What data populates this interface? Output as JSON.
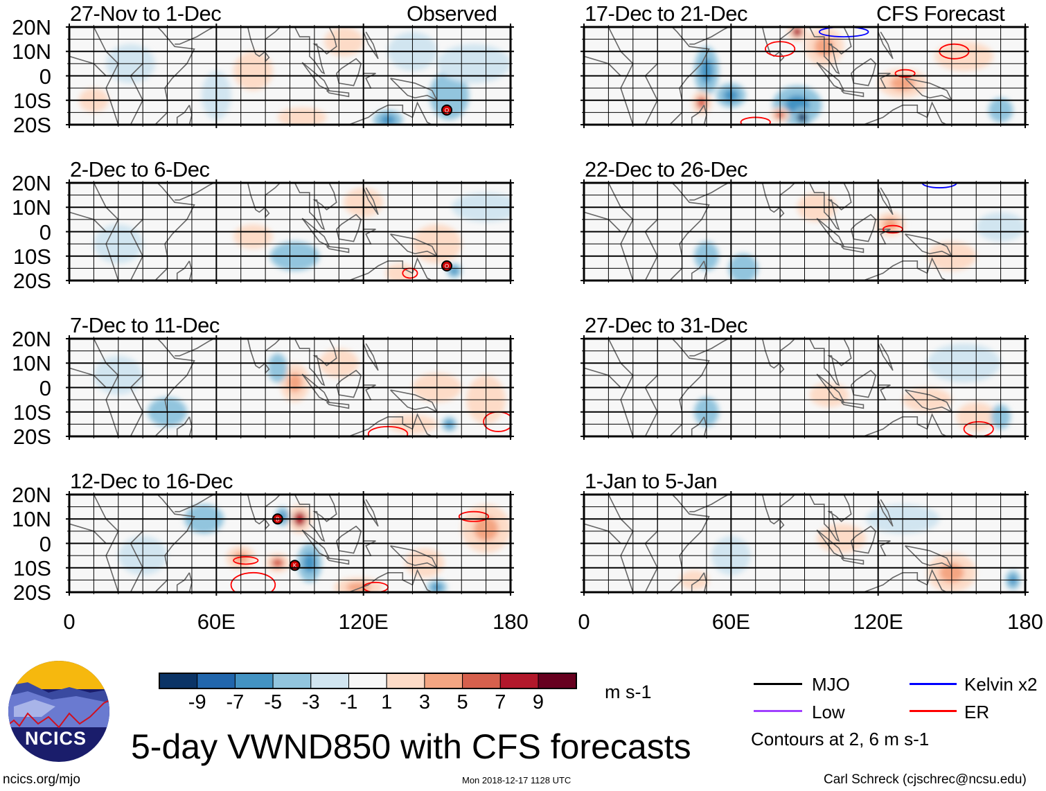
{
  "figure_title": "5-day VWND850 with CFS forecasts",
  "observed_label": "Observed",
  "forecast_label": "CFS Forecast",
  "lat_labels": [
    "20N",
    "10N",
    "0",
    "10S",
    "20S"
  ],
  "lon_labels": [
    "0",
    "60E",
    "120E",
    "180"
  ],
  "colorbar": {
    "units": "m s-1",
    "labels": [
      "-9",
      "-7",
      "-5",
      "-3",
      "-1",
      "1",
      "3",
      "5",
      "7",
      "9"
    ],
    "colors": [
      "#0b3466",
      "#2166ac",
      "#4393c3",
      "#92c5de",
      "#d1e5f0",
      "#f7f7f7",
      "#fddbc7",
      "#f4a582",
      "#d6604d",
      "#b2182b",
      "#67001f"
    ]
  },
  "legend": {
    "items": [
      {
        "label": "MJO",
        "color": "#000000"
      },
      {
        "label": "Kelvin x2",
        "color": "#0000ff"
      },
      {
        "label": "Low",
        "color": "#a040ff"
      },
      {
        "label": "ER",
        "color": "#ff0000"
      }
    ],
    "note": "Contours at 2, 6 m s-1"
  },
  "footer": {
    "left": "ncics.org/mjo",
    "center": "Mon 2018-12-17 1128 UTC",
    "right": "Carl Schreck (cjschrec@ncsu.edu)"
  },
  "logo_text": "NCICS",
  "panels": [
    {
      "title": "27-Nov to 1-Dec",
      "col": 0,
      "row": 0,
      "anoms": [
        [
          10,
          -10,
          6,
          5,
          3
        ],
        [
          75,
          2,
          8,
          8,
          2
        ],
        [
          112,
          14,
          8,
          6,
          3
        ],
        [
          95,
          -17,
          10,
          4,
          3
        ],
        [
          60,
          -8,
          6,
          10,
          -2
        ],
        [
          130,
          -18,
          6,
          4,
          -5
        ],
        [
          155,
          -8,
          8,
          10,
          -3
        ],
        [
          165,
          5,
          15,
          8,
          -2
        ],
        [
          25,
          5,
          10,
          8,
          -2
        ],
        [
          140,
          10,
          10,
          8,
          -1
        ]
      ],
      "contours": [],
      "storms": [
        [
          154,
          -14,
          "Q"
        ]
      ]
    },
    {
      "title": "17-Dec to 21-Dec",
      "col": 1,
      "row": 0,
      "anoms": [
        [
          50,
          2,
          5,
          10,
          -5
        ],
        [
          60,
          -8,
          6,
          5,
          -5
        ],
        [
          48,
          -11,
          4,
          5,
          6
        ],
        [
          87,
          -12,
          10,
          8,
          -5
        ],
        [
          89,
          -17,
          4,
          4,
          -9
        ],
        [
          80,
          -16,
          4,
          3,
          7
        ],
        [
          87,
          18,
          4,
          4,
          9
        ],
        [
          98,
          12,
          8,
          8,
          5
        ],
        [
          130,
          -3,
          10,
          6,
          4
        ],
        [
          155,
          8,
          12,
          6,
          3
        ],
        [
          170,
          -14,
          5,
          5,
          -4
        ]
      ],
      "contours": [
        [
          80,
          11,
          6,
          3,
          "ER"
        ],
        [
          151,
          10,
          6,
          3,
          "ER"
        ],
        [
          131,
          1,
          4,
          1.5,
          "ER"
        ],
        [
          70,
          -19,
          6,
          2,
          "ER"
        ],
        [
          106,
          18,
          10,
          2,
          "Kelvin"
        ]
      ],
      "storms": []
    },
    {
      "title": "2-Dec to 6-Dec",
      "col": 0,
      "row": 1,
      "anoms": [
        [
          120,
          12,
          8,
          6,
          3
        ],
        [
          92,
          -10,
          10,
          6,
          -3
        ],
        [
          150,
          -5,
          10,
          8,
          3
        ],
        [
          157,
          -16,
          3,
          3,
          -6
        ],
        [
          170,
          10,
          14,
          6,
          -2
        ],
        [
          20,
          -5,
          10,
          8,
          -2
        ],
        [
          75,
          -2,
          8,
          5,
          2
        ],
        [
          135,
          -17,
          6,
          4,
          3
        ]
      ],
      "contours": [
        [
          139,
          -17,
          3,
          2,
          "ER"
        ]
      ],
      "storms": [
        [
          154,
          -14,
          "O"
        ]
      ]
    },
    {
      "title": "22-Dec to 26-Dec",
      "col": 1,
      "row": 1,
      "anoms": [
        [
          125,
          3,
          6,
          5,
          4
        ],
        [
          65,
          -15,
          6,
          6,
          -4
        ],
        [
          95,
          10,
          8,
          6,
          2
        ],
        [
          50,
          -10,
          5,
          6,
          -3
        ],
        [
          150,
          -10,
          10,
          6,
          2
        ],
        [
          170,
          2,
          10,
          6,
          -2
        ]
      ],
      "contours": [
        [
          126,
          1,
          4,
          1.5,
          "ER"
        ],
        [
          145,
          20,
          7,
          2,
          "Kelvin"
        ]
      ],
      "storms": []
    },
    {
      "title": "7-Dec to 11-Dec",
      "col": 0,
      "row": 2,
      "anoms": [
        [
          92,
          2,
          6,
          8,
          5
        ],
        [
          85,
          8,
          4,
          6,
          -4
        ],
        [
          110,
          10,
          8,
          6,
          3
        ],
        [
          150,
          0,
          10,
          6,
          3
        ],
        [
          155,
          -15,
          3,
          3,
          -5
        ],
        [
          40,
          -10,
          8,
          6,
          -3
        ],
        [
          20,
          5,
          10,
          8,
          -2
        ],
        [
          170,
          -5,
          8,
          10,
          2
        ],
        [
          140,
          -15,
          10,
          4,
          3
        ]
      ],
      "contours": [
        [
          130,
          -19,
          8,
          3,
          "ER"
        ],
        [
          175,
          -14,
          6,
          4,
          "ER"
        ]
      ],
      "storms": []
    },
    {
      "title": "27-Dec to 31-Dec",
      "col": 1,
      "row": 2,
      "anoms": [
        [
          155,
          10,
          15,
          8,
          -2
        ],
        [
          160,
          -12,
          8,
          6,
          3
        ],
        [
          50,
          -10,
          5,
          6,
          -3
        ],
        [
          100,
          -3,
          8,
          5,
          2
        ],
        [
          140,
          -5,
          10,
          5,
          2
        ],
        [
          170,
          -12,
          4,
          5,
          -3
        ]
      ],
      "contours": [
        [
          161,
          -17,
          6,
          3,
          "ER"
        ]
      ],
      "storms": []
    },
    {
      "title": "12-Dec to 16-Dec",
      "col": 0,
      "row": 3,
      "anoms": [
        [
          94,
          10,
          5,
          6,
          8
        ],
        [
          87,
          11,
          3,
          4,
          -6
        ],
        [
          98,
          -8,
          5,
          8,
          -6
        ],
        [
          85,
          -8,
          5,
          4,
          6
        ],
        [
          70,
          -6,
          6,
          5,
          4
        ],
        [
          118,
          -18,
          10,
          4,
          5
        ],
        [
          170,
          6,
          10,
          10,
          4
        ],
        [
          55,
          10,
          8,
          6,
          -4
        ],
        [
          30,
          -5,
          10,
          8,
          -2
        ],
        [
          150,
          -18,
          4,
          3,
          -5
        ],
        [
          145,
          -8,
          8,
          6,
          3
        ]
      ],
      "contours": [
        [
          165,
          11,
          6,
          2,
          "ER"
        ],
        [
          72,
          -7,
          5,
          1.5,
          "ER"
        ],
        [
          75,
          -17,
          9,
          5,
          "ER"
        ],
        [
          125,
          -18,
          5,
          2,
          "ER"
        ]
      ],
      "storms": [
        [
          85,
          10,
          "B"
        ],
        [
          92,
          -9,
          "K"
        ]
      ]
    },
    {
      "title": "1-Jan to 5-Jan",
      "col": 1,
      "row": 3,
      "anoms": [
        [
          150,
          -12,
          10,
          8,
          5
        ],
        [
          175,
          -15,
          3,
          4,
          -5
        ],
        [
          105,
          2,
          10,
          6,
          3
        ],
        [
          60,
          -5,
          8,
          8,
          -2
        ],
        [
          130,
          10,
          15,
          6,
          -2
        ],
        [
          45,
          -15,
          6,
          4,
          2
        ]
      ],
      "contours": [],
      "storms": []
    }
  ]
}
